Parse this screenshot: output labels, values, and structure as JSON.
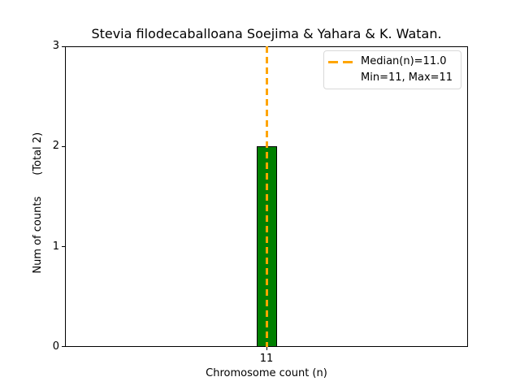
{
  "chart_data": {
    "type": "bar",
    "title": "Stevia filodecaballoana Soejima & Yahara & K. Watan.",
    "xlabel": "Chromosome count (n)",
    "ylabel": "Num of counts",
    "ylabel_annotation": "(Total 2)",
    "categories": [
      11
    ],
    "values": [
      2
    ],
    "total_counts": 2,
    "median_n": 11.0,
    "min_n": 11,
    "max_n": 11,
    "ylim": [
      0,
      3
    ],
    "yticks": [
      0,
      1,
      2,
      3
    ],
    "ytick_labels": [
      "0",
      "1",
      "2",
      "3"
    ],
    "xtick_labels": [
      "11"
    ],
    "grid": false,
    "legend_position": "upper right",
    "legend": {
      "items": [
        {
          "label": "Median(n)=11.0",
          "handle": "orange-dashed-line"
        },
        {
          "label": "Min=11, Max=11",
          "handle": "none"
        }
      ]
    },
    "colors": {
      "bar_fill": "#008000",
      "bar_edge": "#000000",
      "median_line": "#ffa500",
      "axes_edge": "#000000",
      "legend_border": "#d9d9d9",
      "background": "#ffffff",
      "text": "#000000"
    }
  }
}
